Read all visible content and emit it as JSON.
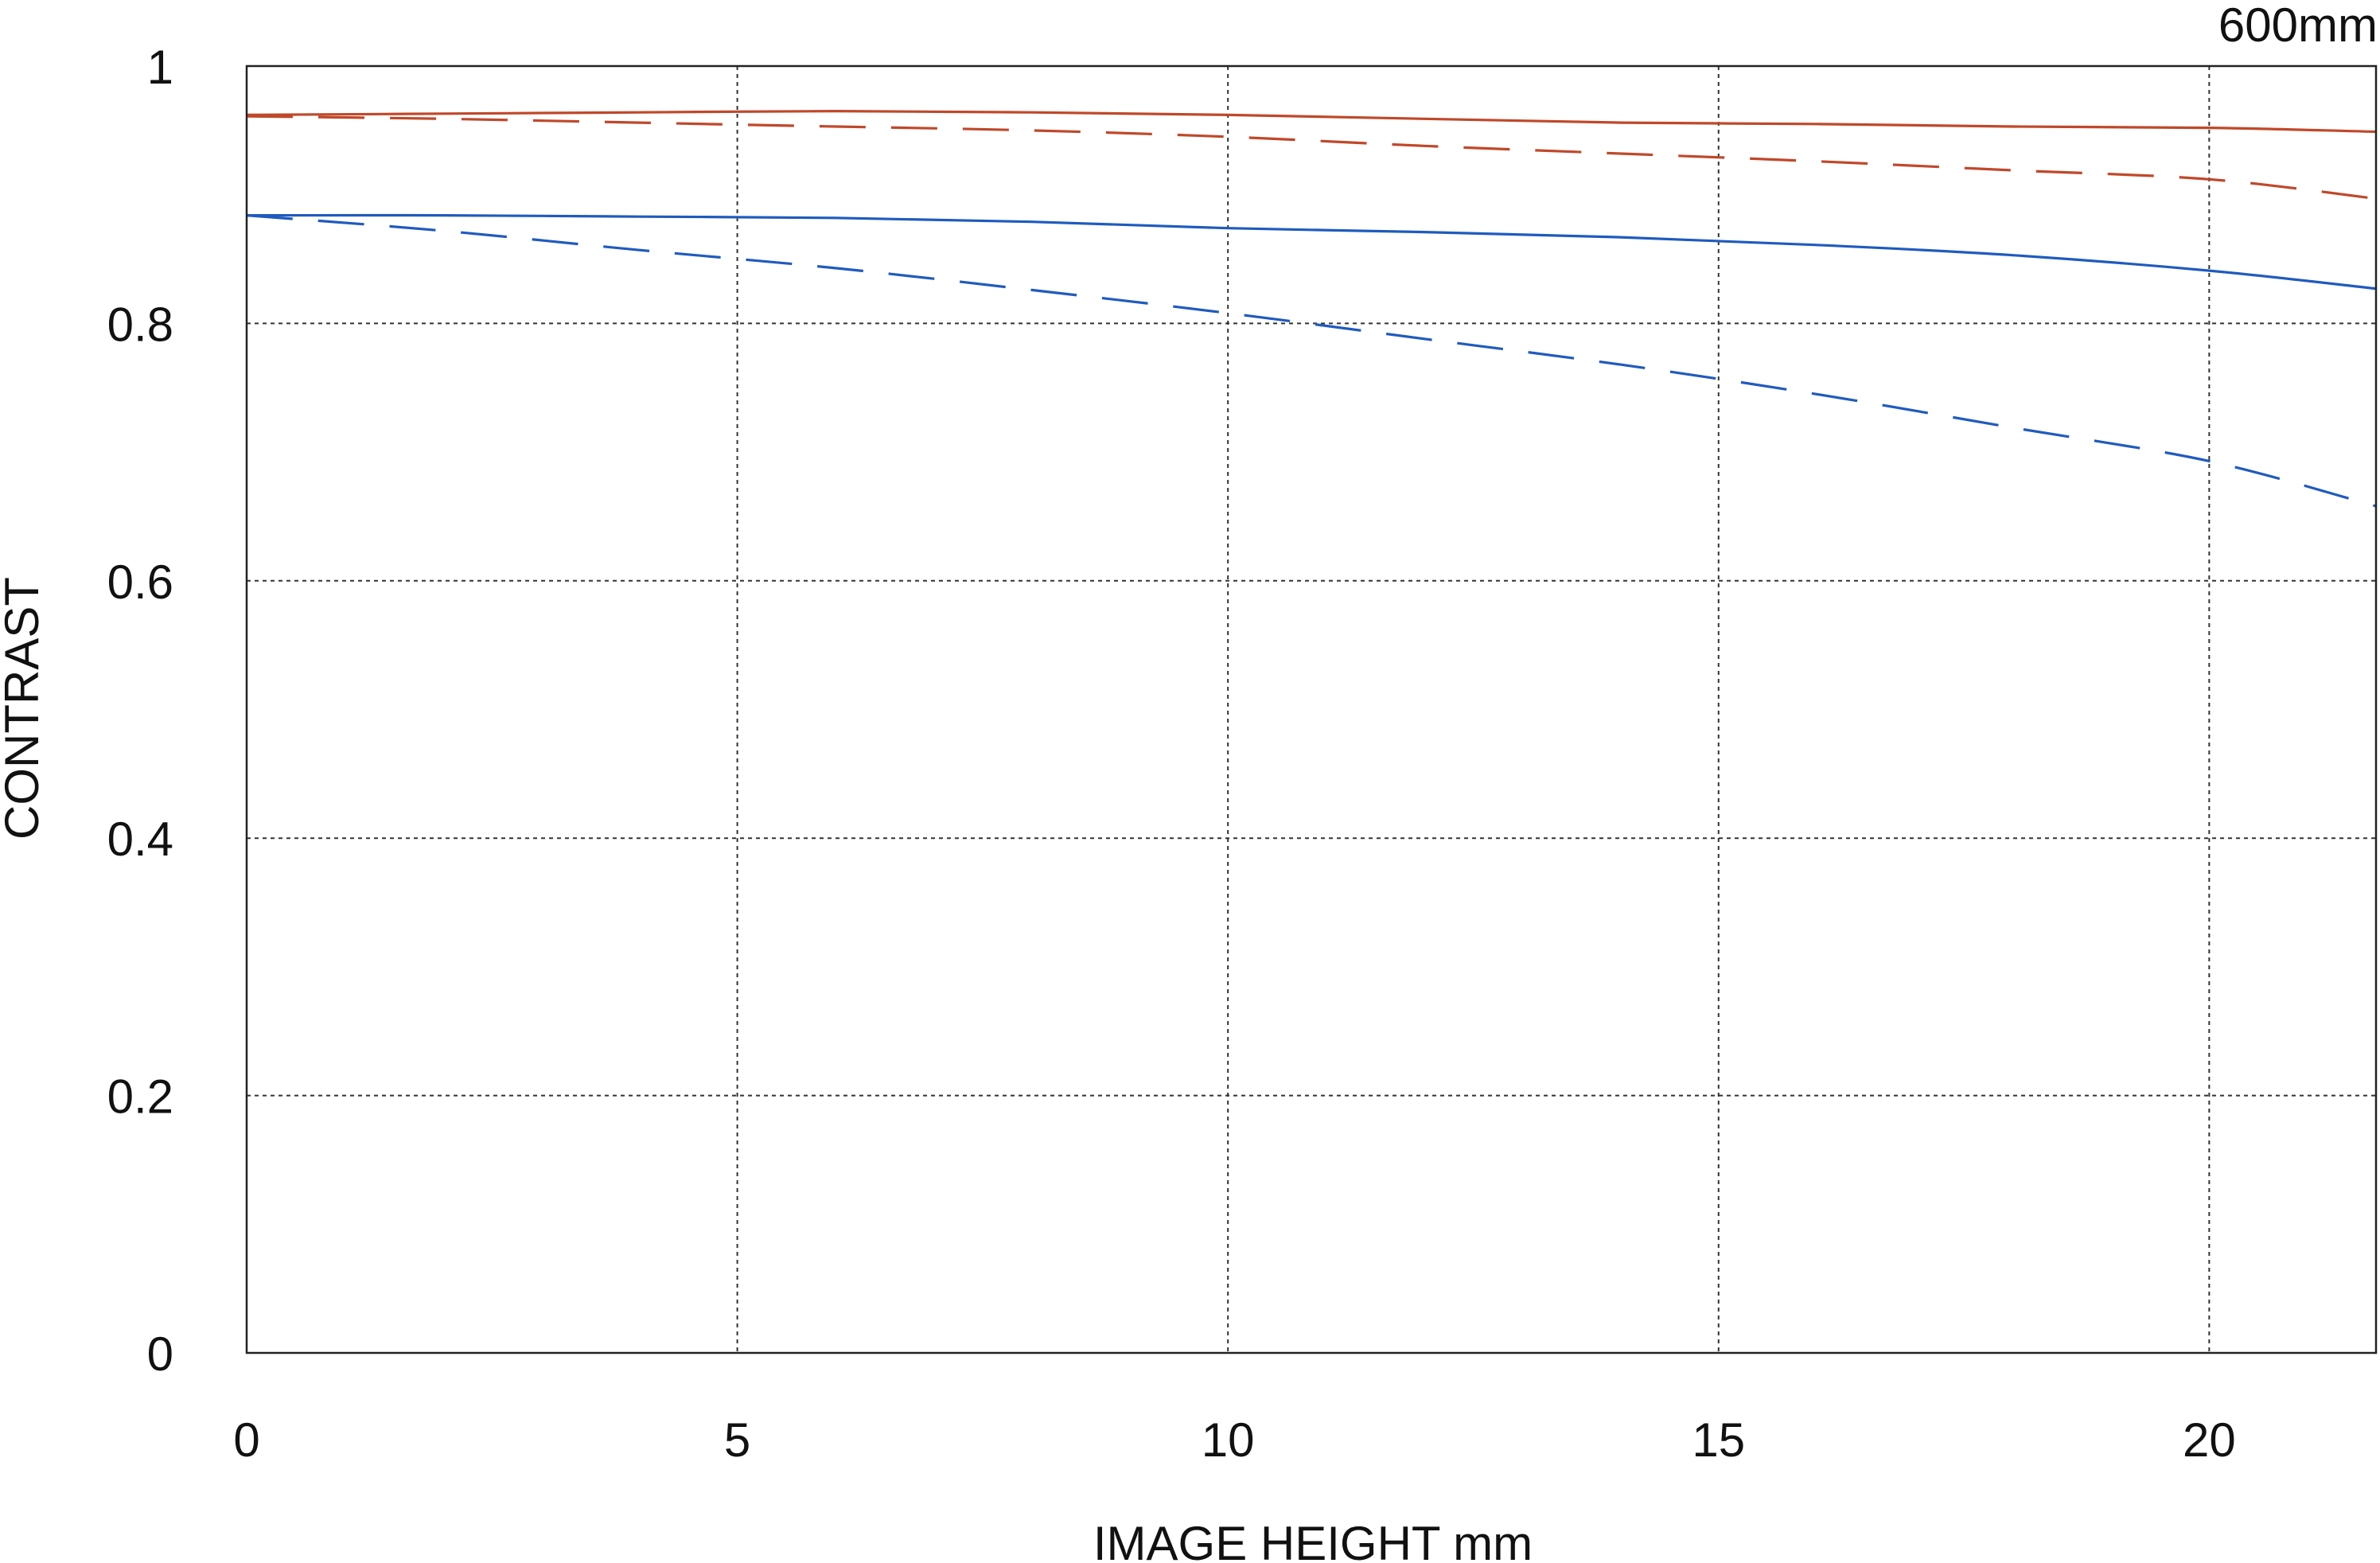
{
  "chart_data": {
    "type": "line",
    "title": "",
    "corner_label": "600mm",
    "xlabel": "IMAGE HEIGHT  mm",
    "ylabel": "CONTRAST",
    "xlim": [
      0,
      21.7
    ],
    "ylim": [
      0,
      1
    ],
    "x_ticks": [
      0,
      5,
      10,
      15,
      20
    ],
    "x_tick_labels": [
      "0",
      "5",
      "10",
      "15",
      "20"
    ],
    "y_ticks": [
      0,
      0.2,
      0.4,
      0.6,
      0.8,
      1
    ],
    "y_tick_labels": [
      "0",
      "0.2",
      "0.4",
      "0.6",
      "0.8",
      "1"
    ],
    "grid": true,
    "series": [
      {
        "color": "#c0482a",
        "style": "solid",
        "x": [
          0,
          2,
          4,
          6,
          8,
          10,
          12,
          14,
          16,
          18,
          20,
          21.7
        ],
        "y": [
          0.962,
          0.963,
          0.964,
          0.965,
          0.964,
          0.962,
          0.959,
          0.956,
          0.955,
          0.953,
          0.952,
          0.949
        ]
      },
      {
        "color": "#c0482a",
        "style": "dashed",
        "x": [
          0,
          2,
          4,
          6,
          8,
          10,
          12,
          14,
          16,
          18,
          20,
          21.7
        ],
        "y": [
          0.961,
          0.959,
          0.956,
          0.953,
          0.95,
          0.945,
          0.938,
          0.932,
          0.926,
          0.919,
          0.912,
          0.897
        ]
      },
      {
        "color": "#1f5bbf",
        "style": "solid",
        "x": [
          0,
          2,
          4,
          6,
          8,
          10,
          12,
          14,
          16,
          18,
          20,
          21.7
        ],
        "y": [
          0.884,
          0.884,
          0.883,
          0.882,
          0.879,
          0.874,
          0.871,
          0.867,
          0.861,
          0.853,
          0.841,
          0.827
        ]
      },
      {
        "color": "#1f5bbf",
        "style": "dashed",
        "x": [
          0,
          2,
          4,
          6,
          8,
          10,
          12,
          14,
          16,
          18,
          20,
          21.7
        ],
        "y": [
          0.884,
          0.872,
          0.857,
          0.843,
          0.826,
          0.808,
          0.788,
          0.768,
          0.745,
          0.719,
          0.693,
          0.658
        ]
      }
    ]
  }
}
